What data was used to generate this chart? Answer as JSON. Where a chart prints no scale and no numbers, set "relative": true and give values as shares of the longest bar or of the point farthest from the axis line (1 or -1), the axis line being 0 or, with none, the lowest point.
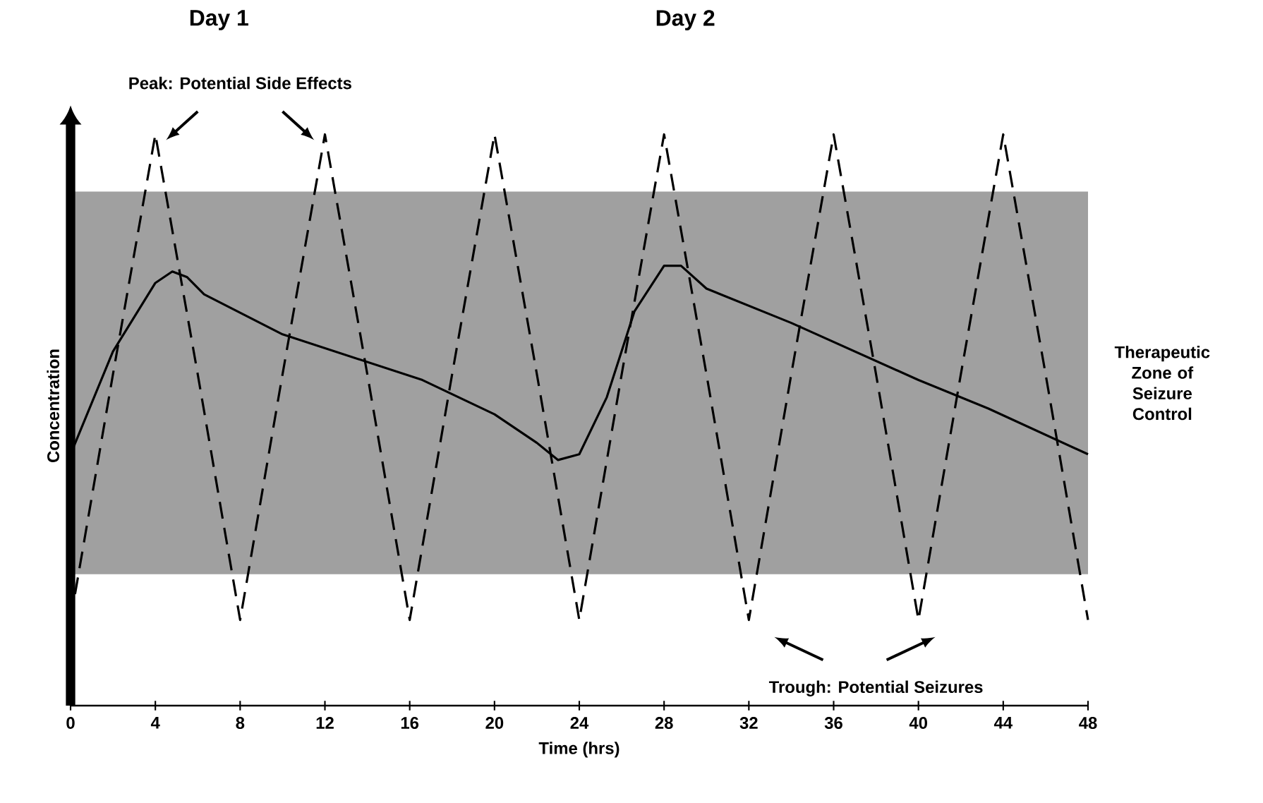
{
  "chart_data": {
    "type": "line",
    "relative": true,
    "xlabel": "Time (hrs)",
    "ylabel": "Concentration",
    "x": [
      0,
      2,
      4,
      4.8,
      5.5,
      6.3,
      10,
      16.6,
      20,
      22,
      23,
      24,
      25.3,
      26.6,
      28,
      28.8,
      30,
      34,
      40,
      43.3,
      48
    ],
    "xlim": [
      0,
      48
    ],
    "xticks": [
      0,
      4,
      8,
      12,
      16,
      20,
      24,
      28,
      32,
      36,
      40,
      44,
      48
    ],
    "series": [
      {
        "color": "#000000",
        "line_style": "solid",
        "values": [
          0.44,
          0.62,
          0.74,
          0.76,
          0.75,
          0.72,
          0.65,
          0.57,
          0.51,
          0.46,
          0.43,
          0.44,
          0.54,
          0.69,
          0.77,
          0.77,
          0.73,
          0.67,
          0.57,
          0.52,
          0.44
        ]
      },
      {
        "color": "#000000",
        "line_style": "dashed",
        "x": [
          0,
          2,
          4,
          6,
          8,
          10,
          12,
          14,
          16,
          18,
          20,
          22,
          24,
          26,
          28,
          30,
          32,
          34,
          36,
          38,
          40,
          42,
          44,
          46,
          48
        ],
        "values": [
          0.15,
          0.58,
          1,
          0.58,
          0.15,
          0.58,
          1,
          0.58,
          0.15,
          0.58,
          1,
          0.58,
          0.15,
          0.58,
          1,
          0.58,
          0.15,
          0.58,
          1,
          0.58,
          0.15,
          0.58,
          1,
          0.58,
          0.15
        ]
      }
    ],
    "bands": [
      {
        "axis": "y",
        "from": 0.23,
        "to": 0.9,
        "label": "Therapeutic Zone of Seizure Control",
        "color": "#a0a0a0"
      }
    ],
    "annotations": [
      "Day 1",
      "Day 2",
      "Peak: Potential Side Effects",
      "Trough: Potential Seizures"
    ],
    "marker": "none"
  }
}
